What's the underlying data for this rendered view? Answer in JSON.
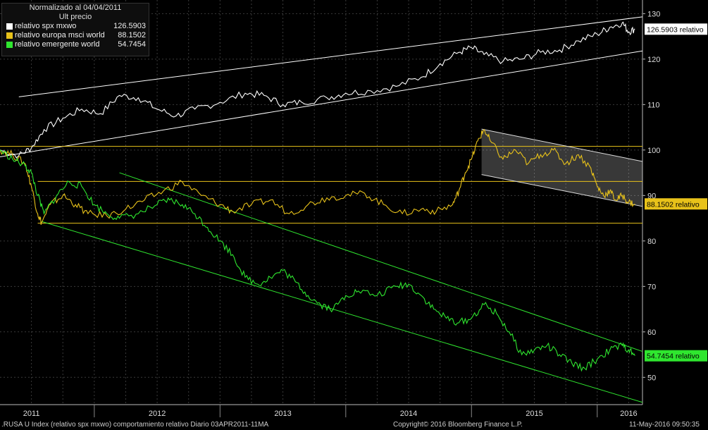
{
  "legend": {
    "title": "Normalizado al 04/04/2011",
    "subtitle": "Ult precio",
    "items": [
      {
        "name": "relativo spx mxwo",
        "value": "126.5903",
        "color": "#ffffff"
      },
      {
        "name": "relativo europa msci world",
        "value": "88.1502",
        "color": "#e8c21a"
      },
      {
        "name": "relativo emergente world",
        "value": "54.7454",
        "color": "#2fe62f"
      }
    ]
  },
  "footer": {
    "left": ".RUSA U Index (relativo spx mxwo) comportamiento relativo  Diario 03APR2011-11MA",
    "center": "Copyright© 2016 Bloomberg Finance L.P.",
    "right": "11-May-2016 09:50:35"
  },
  "chart_data": {
    "type": "line",
    "title": "Normalizado al 04/04/2011",
    "xlim": [
      2011.25,
      2016.36
    ],
    "ylim": [
      44,
      133
    ],
    "y_ticks": [
      50,
      60,
      70,
      80,
      90,
      100,
      110,
      120,
      130
    ],
    "x_tick_labels": [
      "2011",
      "2012",
      "2013",
      "2014",
      "2015",
      "2016"
    ],
    "x_tick_positions": [
      2011.5,
      2012.5,
      2013.5,
      2014.5,
      2015.5,
      2016.25
    ],
    "grid": true,
    "legend_position": "top-left",
    "series": [
      {
        "name": "relativo spx mxwo",
        "color": "#ffffff",
        "last_label": "126.5903 relativo",
        "points": [
          [
            2011.25,
            100
          ],
          [
            2011.4,
            98.8
          ],
          [
            2011.5,
            100.5
          ],
          [
            2011.6,
            104.5
          ],
          [
            2011.75,
            107
          ],
          [
            2011.9,
            109
          ],
          [
            2012.05,
            108
          ],
          [
            2012.2,
            112
          ],
          [
            2012.35,
            111.5
          ],
          [
            2012.5,
            109
          ],
          [
            2012.65,
            107.5
          ],
          [
            2012.8,
            109
          ],
          [
            2013.0,
            110.5
          ],
          [
            2013.2,
            112.5
          ],
          [
            2013.35,
            112
          ],
          [
            2013.5,
            110
          ],
          [
            2013.65,
            110.5
          ],
          [
            2013.85,
            111.5
          ],
          [
            2014.0,
            112.5
          ],
          [
            2014.2,
            113
          ],
          [
            2014.4,
            114
          ],
          [
            2014.6,
            116
          ],
          [
            2014.75,
            119
          ],
          [
            2014.9,
            121.5
          ],
          [
            2015.0,
            122.5
          ],
          [
            2015.1,
            121
          ],
          [
            2015.25,
            119.5
          ],
          [
            2015.4,
            120
          ],
          [
            2015.55,
            121.5
          ],
          [
            2015.7,
            122
          ],
          [
            2015.85,
            124
          ],
          [
            2016.0,
            125.5
          ],
          [
            2016.1,
            127
          ],
          [
            2016.2,
            128
          ],
          [
            2016.25,
            126
          ],
          [
            2016.3,
            126.5903
          ]
        ]
      },
      {
        "name": "relativo europa msci world",
        "color": "#e8c21a",
        "last_label": "88.1502  relativo",
        "points": [
          [
            2011.25,
            100
          ],
          [
            2011.35,
            99
          ],
          [
            2011.45,
            97
          ],
          [
            2011.5,
            92
          ],
          [
            2011.55,
            86
          ],
          [
            2011.58,
            84
          ],
          [
            2011.65,
            88
          ],
          [
            2011.75,
            90
          ],
          [
            2011.85,
            88
          ],
          [
            2011.95,
            86
          ],
          [
            2012.1,
            85.5
          ],
          [
            2012.25,
            87
          ],
          [
            2012.4,
            89
          ],
          [
            2012.55,
            91
          ],
          [
            2012.7,
            93
          ],
          [
            2012.85,
            90
          ],
          [
            2013.0,
            88
          ],
          [
            2013.1,
            86.5
          ],
          [
            2013.25,
            88
          ],
          [
            2013.4,
            89
          ],
          [
            2013.55,
            86
          ],
          [
            2013.7,
            88
          ],
          [
            2013.85,
            89.5
          ],
          [
            2014.0,
            90
          ],
          [
            2014.15,
            90.5
          ],
          [
            2014.3,
            88
          ],
          [
            2014.45,
            86
          ],
          [
            2014.6,
            87
          ],
          [
            2014.72,
            86.5
          ],
          [
            2014.85,
            88
          ],
          [
            2014.9,
            91
          ],
          [
            2014.95,
            95
          ],
          [
            2015.0,
            98
          ],
          [
            2015.05,
            102
          ],
          [
            2015.1,
            104.5
          ],
          [
            2015.15,
            102
          ],
          [
            2015.25,
            98
          ],
          [
            2015.35,
            100
          ],
          [
            2015.45,
            97
          ],
          [
            2015.55,
            99
          ],
          [
            2015.65,
            100
          ],
          [
            2015.75,
            97
          ],
          [
            2015.85,
            99
          ],
          [
            2015.95,
            96
          ],
          [
            2016.0,
            92
          ],
          [
            2016.05,
            90
          ],
          [
            2016.1,
            91
          ],
          [
            2016.15,
            89
          ],
          [
            2016.2,
            90
          ],
          [
            2016.25,
            88.5
          ],
          [
            2016.3,
            88.1502
          ]
        ]
      },
      {
        "name": "relativo emergente world",
        "color": "#2fe62f",
        "last_label": "54.7454  relativo",
        "points": [
          [
            2011.25,
            100
          ],
          [
            2011.35,
            98
          ],
          [
            2011.45,
            96.5
          ],
          [
            2011.5,
            95
          ],
          [
            2011.55,
            90
          ],
          [
            2011.6,
            86
          ],
          [
            2011.7,
            90
          ],
          [
            2011.8,
            93
          ],
          [
            2011.9,
            92
          ],
          [
            2012.0,
            88
          ],
          [
            2012.1,
            86
          ],
          [
            2012.2,
            85
          ],
          [
            2012.35,
            86
          ],
          [
            2012.5,
            88
          ],
          [
            2012.6,
            89
          ],
          [
            2012.7,
            88
          ],
          [
            2012.8,
            86
          ],
          [
            2012.9,
            83
          ],
          [
            2013.0,
            80
          ],
          [
            2013.1,
            77
          ],
          [
            2013.2,
            72
          ],
          [
            2013.3,
            70.5
          ],
          [
            2013.4,
            72
          ],
          [
            2013.5,
            73.5
          ],
          [
            2013.6,
            71
          ],
          [
            2013.7,
            68
          ],
          [
            2013.8,
            66
          ],
          [
            2013.9,
            65
          ],
          [
            2014.0,
            68
          ],
          [
            2014.1,
            69
          ],
          [
            2014.25,
            68
          ],
          [
            2014.4,
            70
          ],
          [
            2014.5,
            70.5
          ],
          [
            2014.6,
            68
          ],
          [
            2014.7,
            65
          ],
          [
            2014.8,
            63
          ],
          [
            2014.9,
            62
          ],
          [
            2015.0,
            63
          ],
          [
            2015.1,
            66
          ],
          [
            2015.2,
            64
          ],
          [
            2015.3,
            60
          ],
          [
            2015.4,
            55
          ],
          [
            2015.5,
            56
          ],
          [
            2015.6,
            57
          ],
          [
            2015.7,
            55
          ],
          [
            2015.8,
            53
          ],
          [
            2015.9,
            52
          ],
          [
            2016.0,
            54
          ],
          [
            2016.1,
            56
          ],
          [
            2016.2,
            57
          ],
          [
            2016.25,
            56
          ],
          [
            2016.3,
            54.7454
          ]
        ]
      }
    ],
    "trend_lines": [
      {
        "color": "#ffffff",
        "from": [
          2011.4,
          111.7
        ],
        "to": [
          2016.36,
          129.3
        ]
      },
      {
        "color": "#ffffff",
        "from": [
          2011.25,
          98.5
        ],
        "to": [
          2016.36,
          121.8
        ]
      },
      {
        "color": "#e8c21a",
        "from": [
          2011.25,
          100.8
        ],
        "to": [
          2016.36,
          100.8
        ]
      },
      {
        "color": "#e8c21a",
        "from": [
          2011.55,
          93.1
        ],
        "to": [
          2016.36,
          93.1
        ]
      },
      {
        "color": "#e8c21a",
        "from": [
          2011.55,
          83.9
        ],
        "to": [
          2016.36,
          83.9
        ]
      },
      {
        "color": "#dddddd",
        "from": [
          2015.08,
          104.6
        ],
        "to": [
          2016.36,
          97.5
        ]
      },
      {
        "color": "#dddddd",
        "from": [
          2015.08,
          94.6
        ],
        "to": [
          2016.36,
          87.6
        ]
      },
      {
        "color": "#2fe62f",
        "from": [
          2012.2,
          95.0
        ],
        "to": [
          2016.36,
          55.7
        ]
      },
      {
        "color": "#2fe62f",
        "from": [
          2011.58,
          84.3
        ],
        "to": [
          2016.36,
          44.5
        ]
      }
    ],
    "shaded_regions": [
      {
        "color": "#ffffff",
        "opacity": 0.22,
        "polygon": [
          [
            2015.08,
            104.6
          ],
          [
            2016.36,
            97.5
          ],
          [
            2016.36,
            87.6
          ],
          [
            2015.08,
            94.6
          ]
        ]
      }
    ]
  }
}
